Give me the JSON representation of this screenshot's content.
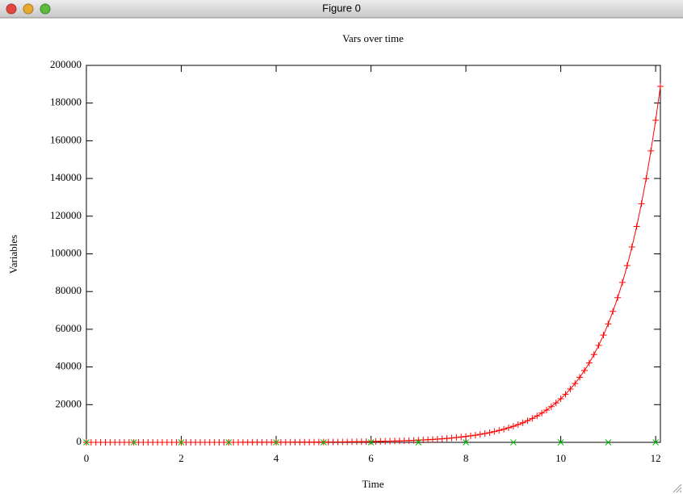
{
  "window": {
    "title": "Figure 0"
  },
  "chart_data": {
    "type": "line",
    "title": "Vars over time",
    "xlabel": "Time",
    "ylabel": "Variables",
    "xlim": [
      0,
      12.1
    ],
    "xticks": [
      0,
      2,
      4,
      6,
      8,
      10,
      12
    ],
    "ylim": [
      0,
      200000
    ],
    "yticks": [
      0,
      20000,
      40000,
      60000,
      80000,
      100000,
      120000,
      140000,
      160000,
      180000,
      200000
    ],
    "grid": false,
    "series": [
      {
        "color": "#ff0000",
        "marker": "+",
        "x": [
          0,
          0.1,
          0.2,
          0.3,
          0.4,
          0.5,
          0.6,
          0.7,
          0.8,
          0.9,
          1,
          1.1,
          1.2,
          1.3,
          1.4,
          1.5,
          1.6,
          1.7,
          1.8,
          1.9,
          2,
          2.1,
          2.2,
          2.3,
          2.4,
          2.5,
          2.6,
          2.7,
          2.8,
          2.9,
          3,
          3.1,
          3.2,
          3.3,
          3.4,
          3.5,
          3.6,
          3.7,
          3.8,
          3.9,
          4,
          4.1,
          4.2,
          4.3,
          4.4,
          4.5,
          4.6,
          4.7,
          4.8,
          4.9,
          5,
          5.1,
          5.2,
          5.3,
          5.4,
          5.5,
          5.6,
          5.7,
          5.8,
          5.9,
          6,
          6.1,
          6.2,
          6.3,
          6.4,
          6.5,
          6.6,
          6.7,
          6.8,
          6.9,
          7,
          7.1,
          7.2,
          7.3,
          7.4,
          7.5,
          7.6,
          7.7,
          7.8,
          7.9,
          8,
          8.1,
          8.2,
          8.3,
          8.4,
          8.5,
          8.6,
          8.7,
          8.8,
          8.9,
          9,
          9.1,
          9.2,
          9.3,
          9.4,
          9.5,
          9.6,
          9.7,
          9.8,
          9.9,
          10,
          10.1,
          10.2,
          10.3,
          10.4,
          10.5,
          10.6,
          10.7,
          10.8,
          10.9,
          11,
          11.1,
          11.2,
          11.3,
          11.4,
          11.5,
          11.6,
          11.7,
          11.8,
          11.9,
          12,
          12.1
        ],
        "values": [
          1.05,
          1.16,
          1.28,
          1.42,
          1.57,
          1.73,
          1.91,
          2.11,
          2.34,
          2.58,
          2.85,
          3.15,
          3.49,
          3.85,
          4.26,
          4.71,
          5.2,
          5.75,
          6.35,
          7.02,
          7.76,
          8.57,
          9.48,
          10.47,
          11.57,
          12.79,
          14.14,
          15.62,
          17.27,
          19.08,
          21.1,
          23.3,
          25.8,
          28.5,
          31.5,
          34.8,
          38.4,
          42.5,
          46.9,
          51.9,
          57.3,
          63.4,
          70,
          77.4,
          85.5,
          94.5,
          104.5,
          115.4,
          127.6,
          141,
          155.8,
          172.2,
          190.3,
          210.3,
          232.4,
          256.9,
          283.9,
          313.7,
          346.7,
          383.2,
          423.6,
          468.2,
          517.4,
          571.8,
          631.9,
          698.4,
          771.9,
          853,
          942.7,
          1041.9,
          1151,
          1273,
          1406,
          1554,
          1718,
          1898,
          2098,
          2319,
          2562,
          2832,
          3130,
          3459,
          3823,
          4225,
          4669,
          5160,
          5703,
          6303,
          6966,
          7699,
          8508,
          9403,
          10392,
          11485,
          12693,
          14027,
          15503,
          17133,
          18935,
          20927,
          23128,
          25560,
          28248,
          31219,
          34503,
          38132,
          42142,
          46574,
          51472,
          56886,
          62868,
          69480,
          76787,
          84863,
          93788,
          103652,
          114553,
          126601,
          139915,
          154631,
          170898,
          188874
        ]
      },
      {
        "color": "#00c000",
        "marker": "x",
        "line": false,
        "x": [
          0,
          1,
          2,
          3,
          4,
          5,
          6,
          7,
          8,
          9,
          10,
          11,
          12
        ],
        "values": [
          0,
          0,
          0,
          0,
          0,
          0,
          0,
          0,
          0,
          0,
          0,
          0,
          0
        ]
      }
    ]
  }
}
